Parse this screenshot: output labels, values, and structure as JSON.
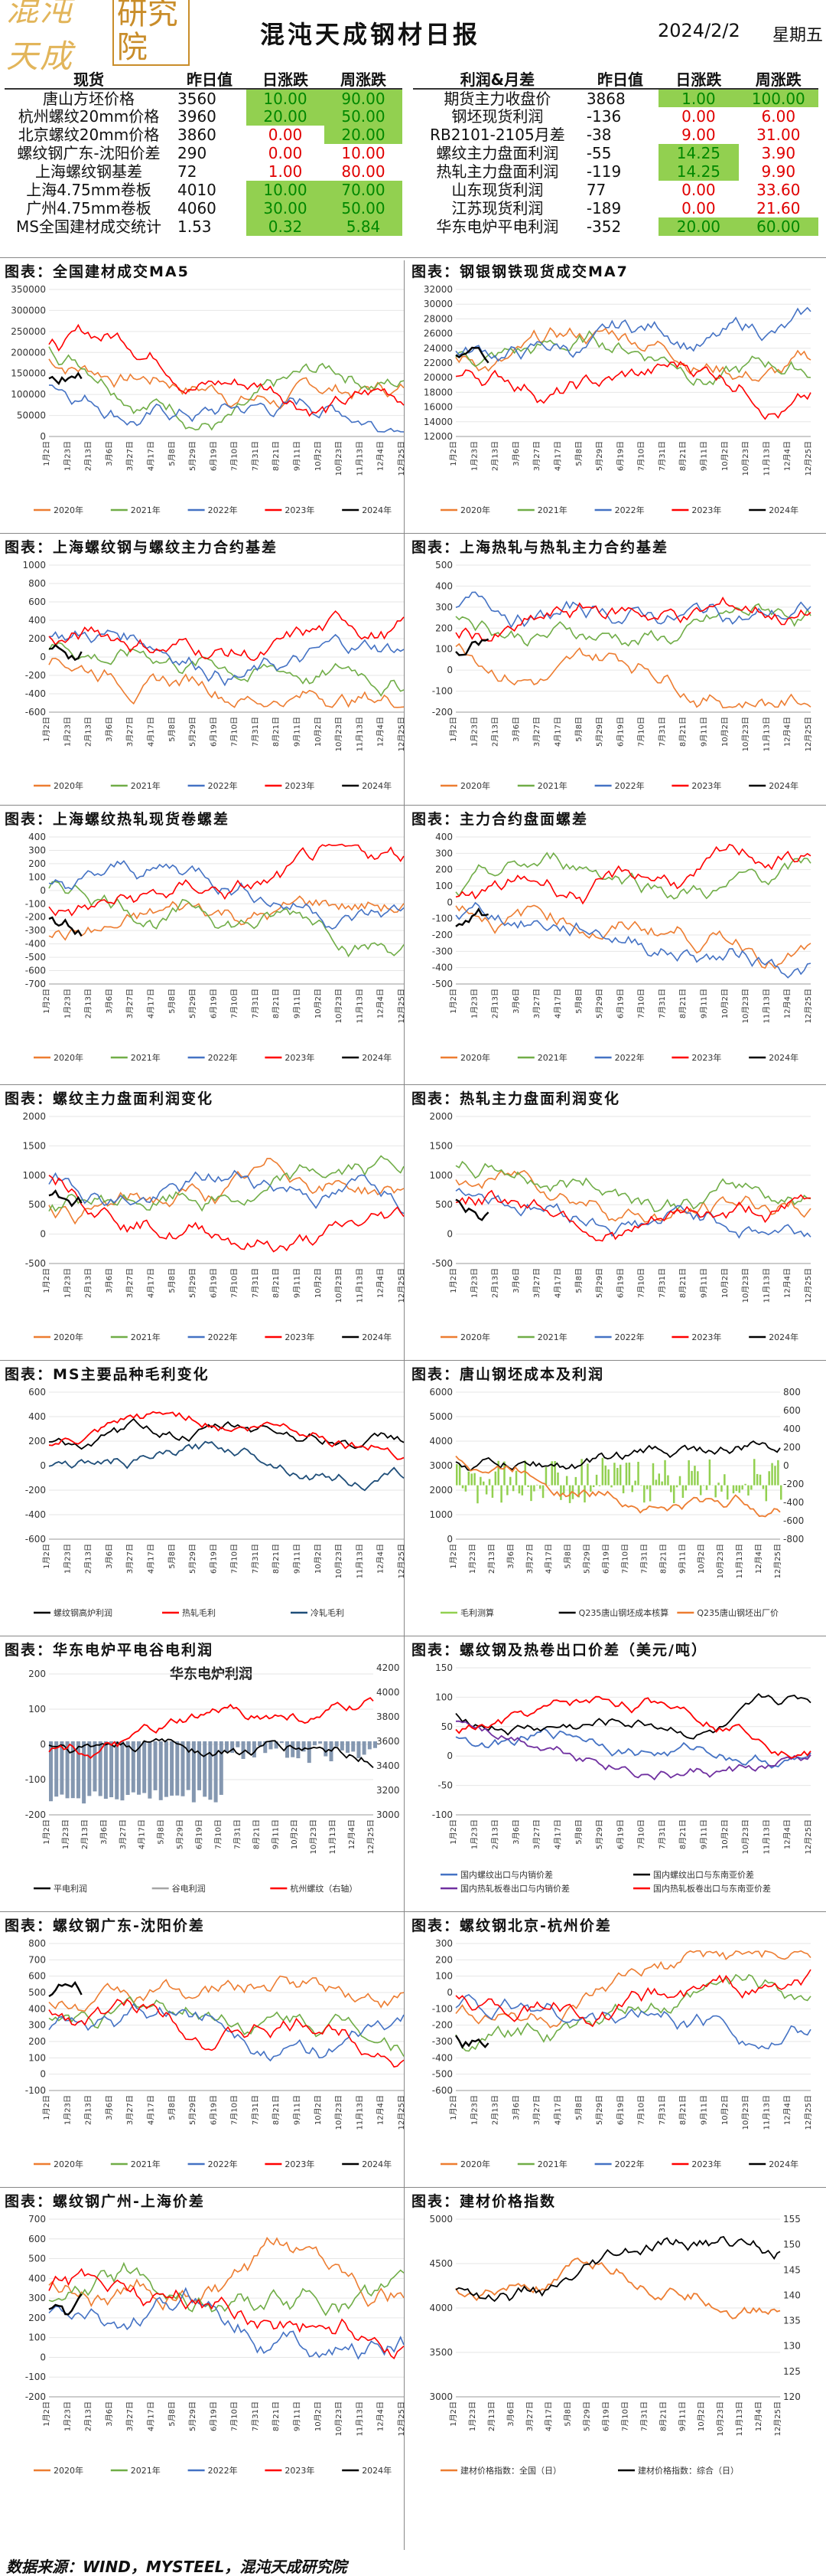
{
  "header": {
    "logo_part1": "混沌天成",
    "logo_part2": "研究院",
    "title": "混沌天成钢材日报",
    "date": "2024/2/2",
    "weekday": "星期五"
  },
  "left_table": {
    "headers": [
      "现货",
      "昨日值",
      "日涨跌",
      "周涨跌"
    ],
    "rows": [
      {
        "name": "唐山方坯价格",
        "value": "3560",
        "day": "10.00",
        "week": "90.00",
        "day_color": "green",
        "week_color": "green"
      },
      {
        "name": "杭州螺纹20mm价格",
        "value": "3960",
        "day": "20.00",
        "week": "50.00",
        "day_color": "green",
        "week_color": "green"
      },
      {
        "name": "北京螺纹20mm价格",
        "value": "3860",
        "day": "0.00",
        "week": "20.00",
        "day_color": "red",
        "week_color": "green"
      },
      {
        "name": "螺纹钢广东-沈阳价差",
        "value": "290",
        "day": "0.00",
        "week": "10.00",
        "day_color": "red",
        "week_color": "red"
      },
      {
        "name": "上海螺纹钢基差",
        "value": "72",
        "day": "1.00",
        "week": "80.00",
        "day_color": "red",
        "week_color": "red"
      },
      {
        "name": "上海4.75mm卷板",
        "value": "4010",
        "day": "10.00",
        "week": "70.00",
        "day_color": "green",
        "week_color": "green"
      },
      {
        "name": "广州4.75mm卷板",
        "value": "4060",
        "day": "30.00",
        "week": "50.00",
        "day_color": "green",
        "week_color": "green"
      },
      {
        "name": "MS全国建材成交统计",
        "value": "1.53",
        "day": "0.32",
        "week": "5.84",
        "day_color": "green",
        "week_color": "green"
      }
    ]
  },
  "right_table": {
    "headers": [
      "利润&月差",
      "昨日值",
      "日涨跌",
      "周涨跌"
    ],
    "rows": [
      {
        "name": "期货主力收盘价",
        "value": "3868",
        "day": "1.00",
        "week": "100.00",
        "day_color": "green",
        "week_color": "green"
      },
      {
        "name": "钢坯现货利润",
        "value": "-136",
        "day": "0.00",
        "week": "6.00",
        "day_color": "red",
        "week_color": "red"
      },
      {
        "name": "RB2101-2105月差",
        "value": "-38",
        "day": "9.00",
        "week": "31.00",
        "day_color": "red",
        "week_color": "red"
      },
      {
        "name": "螺纹主力盘面利润",
        "value": "-55",
        "day": "14.25",
        "week": "3.90",
        "day_color": "green",
        "week_color": "red"
      },
      {
        "name": "热轧主力盘面利润",
        "value": "-119",
        "day": "14.25",
        "week": "9.90",
        "day_color": "green",
        "week_color": "red"
      },
      {
        "name": "山东现货利润",
        "value": "77",
        "day": "0.00",
        "week": "33.60",
        "day_color": "red",
        "week_color": "red"
      },
      {
        "name": "江苏现货利润",
        "value": "-189",
        "day": "0.00",
        "week": "21.60",
        "day_color": "red",
        "week_color": "red"
      },
      {
        "name": "华东电炉平电利润",
        "value": "-352",
        "day": "20.00",
        "week": "60.00",
        "day_color": "green",
        "week_color": "green"
      }
    ]
  },
  "colors": {
    "y2020": "#ed7d31",
    "y2021": "#70ad47",
    "y2022": "#4472c4",
    "y2023": "#ff0000",
    "y2024": "#000000",
    "green_cell": "#92d050"
  },
  "year_legend": [
    "2020年",
    "2021年",
    "2022年",
    "2023年",
    "2024年"
  ],
  "date_ticks_a": [
    "1月2日",
    "1月9日",
    "1月16日",
    "1月23日",
    "1月30日",
    "2月6日",
    "2月13日",
    "2月20日",
    "2月27日",
    "3月6日",
    "3月13日",
    "3月20日",
    "3月27日",
    "4月3日",
    "4月10日",
    "4月17日",
    "4月24日",
    "5月1日",
    "5月8日",
    "5月15日",
    "5月22日",
    "5月29日",
    "6月5日",
    "6月12日",
    "6月19日",
    "6月26日",
    "7月3日",
    "7月10日",
    "7月17日",
    "7月24日",
    "7月31日",
    "8月7日",
    "8月14日",
    "8月21日",
    "8月28日",
    "9月4日",
    "9月11日",
    "9月18日",
    "9月25日",
    "10月2日",
    "10月9日",
    "10月16日",
    "10月23日",
    "10月30日",
    "11月6日",
    "11月13日",
    "11月20日",
    "11月27日",
    "12月4日",
    "12月11日",
    "12月18日",
    "12月25日"
  ],
  "charts": [
    {
      "id": "c1",
      "title": "图表：全国建材成交MA5",
      "yticks": [
        "350000",
        "300000",
        "250000",
        "200000",
        "150000",
        "100000",
        "50000",
        "0"
      ],
      "ylim": [
        0,
        350000
      ],
      "legend": "years"
    },
    {
      "id": "c2",
      "title": "图表：钢银钢铁现货成交MA7",
      "yticks": [
        "32000",
        "30000",
        "28000",
        "26000",
        "24000",
        "22000",
        "20000",
        "18000",
        "16000",
        "14000",
        "12000"
      ],
      "ylim": [
        12000,
        32000
      ],
      "legend": "years"
    },
    {
      "id": "c3",
      "title": "图表：上海螺纹钢与螺纹主力合约基差",
      "yticks": [
        "1000",
        "800",
        "600",
        "400",
        "200",
        "0",
        "-200",
        "-400",
        "-600"
      ],
      "ylim": [
        -600,
        1000
      ],
      "legend": "years"
    },
    {
      "id": "c4",
      "title": "图表：上海热轧与热轧主力合约基差",
      "yticks": [
        "500",
        "400",
        "300",
        "200",
        "100",
        "0",
        "-100",
        "-200"
      ],
      "ylim": [
        -200,
        500
      ],
      "legend": "years"
    },
    {
      "id": "c5",
      "title": "图表：上海螺纹热轧现货卷螺差",
      "yticks": [
        "400",
        "300",
        "200",
        "100",
        "0",
        "-100",
        "-200",
        "-300",
        "-400",
        "-500",
        "-600",
        "-700"
      ],
      "ylim": [
        -700,
        400
      ],
      "legend": "years"
    },
    {
      "id": "c6",
      "title": "图表：主力合约盘面螺差",
      "yticks": [
        "400",
        "300",
        "200",
        "100",
        "0",
        "-100",
        "-200",
        "-300",
        "-400",
        "-500"
      ],
      "ylim": [
        -500,
        400
      ],
      "legend": "years"
    },
    {
      "id": "c7",
      "title": "图表：螺纹主力盘面利润变化",
      "yticks": [
        "2000",
        "1500",
        "1000",
        "500",
        "0",
        "-500"
      ],
      "ylim": [
        -500,
        2000
      ],
      "legend": "years"
    },
    {
      "id": "c8",
      "title": "图表：热轧主力盘面利润变化",
      "yticks": [
        "2000",
        "1500",
        "1000",
        "500",
        "0",
        "-500"
      ],
      "ylim": [
        -500,
        2000
      ],
      "legend": "years"
    },
    {
      "id": "c9",
      "title": "图表：MS主要品种毛利变化",
      "yticks": [
        "600",
        "400",
        "200",
        "0",
        "-200",
        "-400",
        "-600"
      ],
      "ylim": [
        -600,
        600
      ],
      "legend": [
        "螺纹钢高炉利润",
        "热轧毛利",
        "冷轧毛利"
      ],
      "legend_colors": [
        "#000000",
        "#ff0000",
        "#1f4e79"
      ]
    },
    {
      "id": "c10",
      "title": "图表：唐山钢坯成本及利润",
      "yticks": [
        "6000",
        "5000",
        "4000",
        "3000",
        "2000",
        "1000",
        "0"
      ],
      "y2ticks": [
        "800",
        "600",
        "400",
        "200",
        "0",
        "-200",
        "-400",
        "-600",
        "-800"
      ],
      "ylim": [
        0,
        6000
      ],
      "legend": [
        "毛利测算",
        "Q235唐山钢坯成本核算",
        "Q235唐山钢坯出厂价"
      ],
      "legend_colors": [
        "#92d050",
        "#000000",
        "#ed7d31"
      ]
    },
    {
      "id": "c11",
      "title": "图表：华东电炉平电谷电利润",
      "inner_title": "华东电炉利润",
      "yticks": [
        "200",
        "100",
        "0",
        "-100",
        "-200"
      ],
      "y2ticks": [
        "4200",
        "4000",
        "3800",
        "3600",
        "3400",
        "3200",
        "3000"
      ],
      "ylim": [
        -200,
        200
      ],
      "legend": [
        "平电利润",
        "谷电利润",
        "杭州螺纹（右轴）"
      ],
      "legend_colors": [
        "#000000",
        "#a5a5a5",
        "#ff0000"
      ]
    },
    {
      "id": "c12",
      "title": "图表：螺纹钢及热卷出口价差（美元/吨）",
      "yticks": [
        "150",
        "100",
        "50",
        "0",
        "-50",
        "-100"
      ],
      "ylim": [
        -100,
        150
      ],
      "legend": [
        "国内螺纹出口与内销价差",
        "国内螺纹出口与东南亚价差",
        "国内热轧板卷出口与内销价差",
        "国内热轧板卷出口与东南亚价差"
      ],
      "legend_colors": [
        "#4472c4",
        "#000000",
        "#7030a0",
        "#ff0000"
      ]
    },
    {
      "id": "c13",
      "title": "图表：螺纹钢广东-沈阳价差",
      "yticks": [
        "800",
        "700",
        "600",
        "500",
        "400",
        "300",
        "200",
        "100",
        "0",
        "-100"
      ],
      "ylim": [
        -100,
        800
      ],
      "legend": "years"
    },
    {
      "id": "c14",
      "title": "图表：螺纹钢北京-杭州价差",
      "yticks": [
        "300",
        "200",
        "100",
        "0",
        "-100",
        "-200",
        "-300",
        "-400",
        "-500",
        "-600"
      ],
      "ylim": [
        -600,
        300
      ],
      "legend": "years"
    },
    {
      "id": "c15",
      "title": "图表：螺纹钢广州-上海价差",
      "yticks": [
        "700",
        "600",
        "500",
        "400",
        "300",
        "200",
        "100",
        "0",
        "-100",
        "-200"
      ],
      "ylim": [
        -200,
        700
      ],
      "legend": "years"
    },
    {
      "id": "c16",
      "title": "图表：建材价格指数",
      "yticks": [
        "5000",
        "4500",
        "4000",
        "3500",
        "3000"
      ],
      "y2ticks": [
        "155",
        "150",
        "145",
        "140",
        "135",
        "130",
        "125",
        "120"
      ],
      "ylim": [
        3000,
        5000
      ],
      "legend": [
        "建材价格指数：全国（日）",
        "建材价格指数：综合（日）"
      ],
      "legend_colors": [
        "#ed7d31",
        "#000000"
      ]
    }
  ],
  "footer": "数据来源：WIND，MYSTEEL，混沌天成研究院"
}
